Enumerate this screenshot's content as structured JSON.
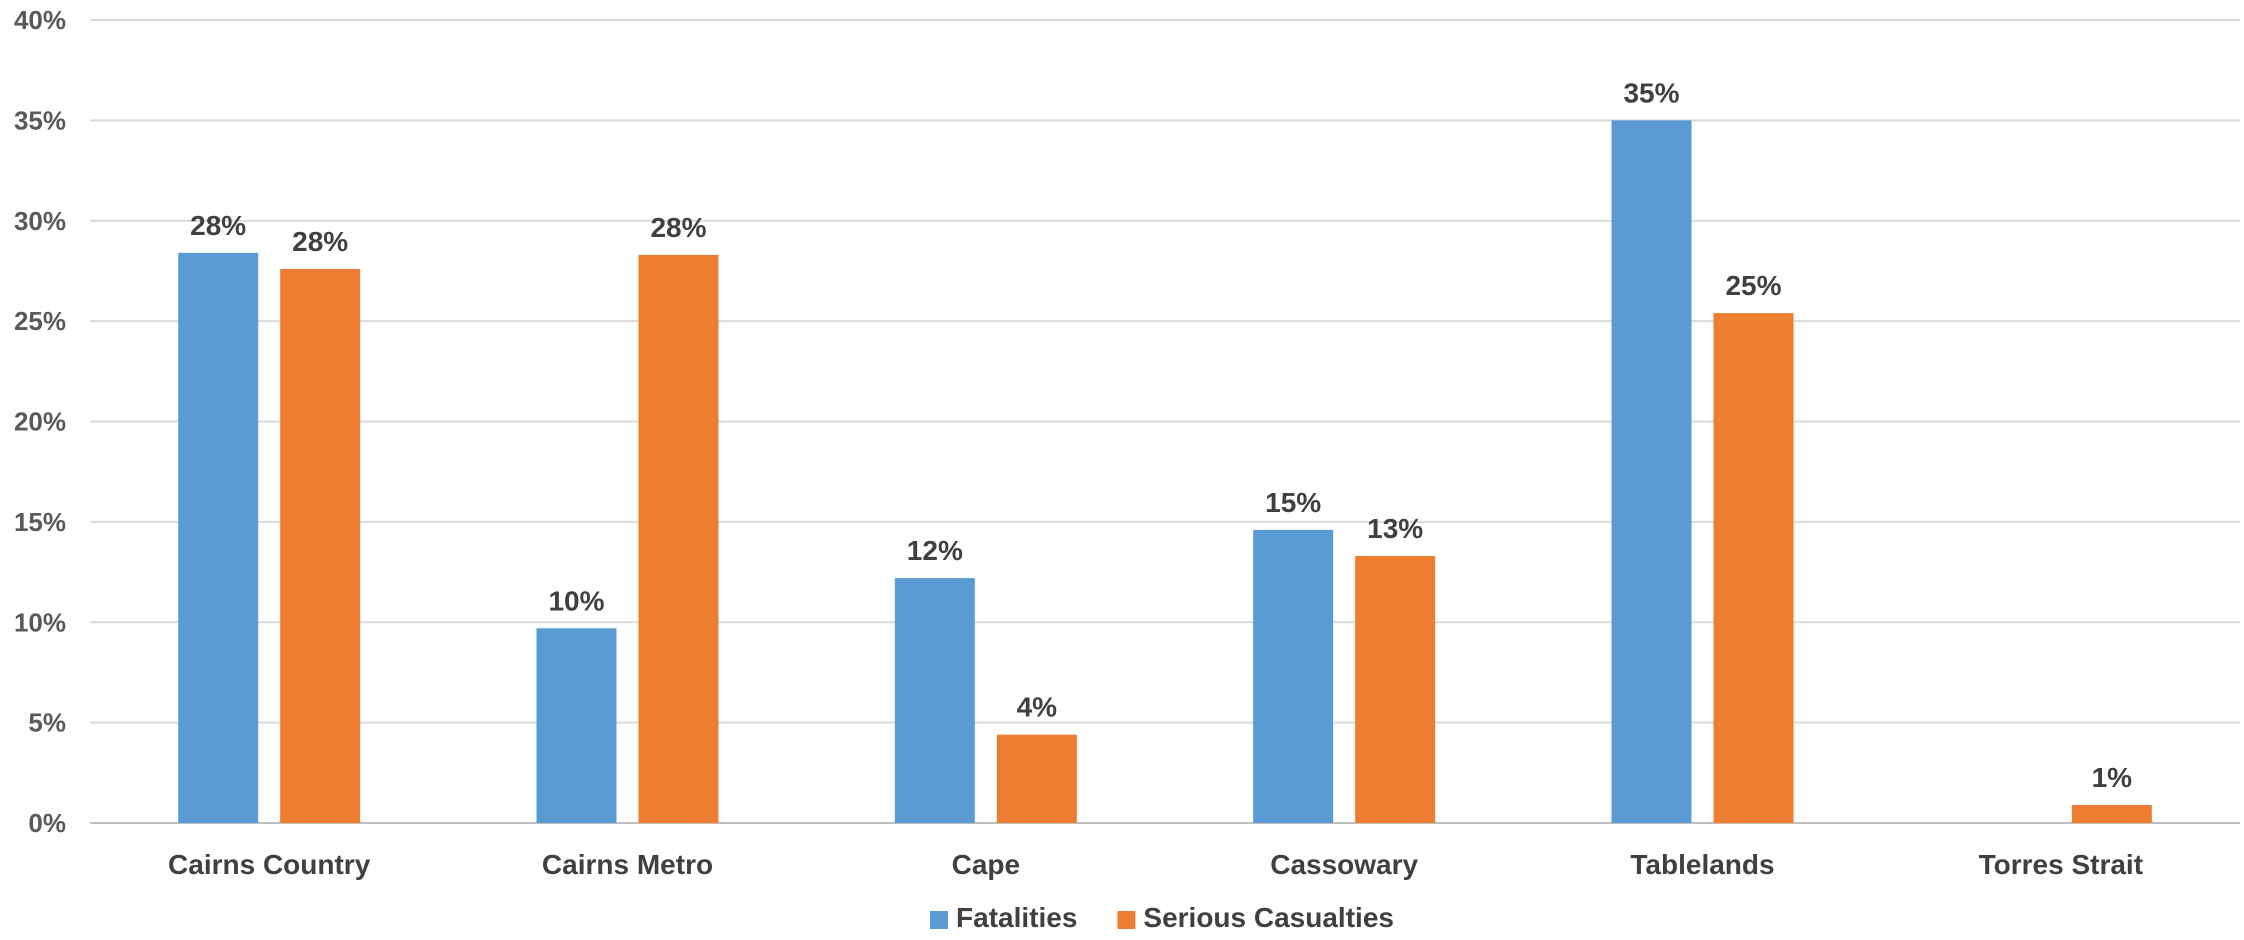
{
  "chart_data": {
    "type": "bar",
    "categories": [
      "Cairns Country",
      "Cairns Metro",
      "Cape",
      "Cassowary",
      "Tablelands",
      "Torres Strait"
    ],
    "series": [
      {
        "name": "Fatalities",
        "color": "#5B9BD5",
        "values": [
          28.4,
          9.7,
          12.2,
          14.6,
          35.0,
          null
        ],
        "labels": [
          "28%",
          "10%",
          "12%",
          "15%",
          "35%",
          ""
        ]
      },
      {
        "name": "Serious Casualties",
        "color": "#ED7D31",
        "values": [
          27.6,
          28.3,
          4.4,
          13.3,
          25.4,
          0.9
        ],
        "labels": [
          "28%",
          "28%",
          "4%",
          "13%",
          "25%",
          "1%"
        ]
      }
    ],
    "ylim": [
      0,
      40
    ],
    "yticks": [
      0,
      5,
      10,
      15,
      20,
      25,
      30,
      35,
      40
    ],
    "ytick_labels": [
      "0%",
      "5%",
      "10%",
      "15%",
      "20%",
      "25%",
      "30%",
      "35%",
      "40%"
    ],
    "grid": true,
    "legend": "bottom-center",
    "title": "",
    "xlabel": "",
    "ylabel": ""
  }
}
